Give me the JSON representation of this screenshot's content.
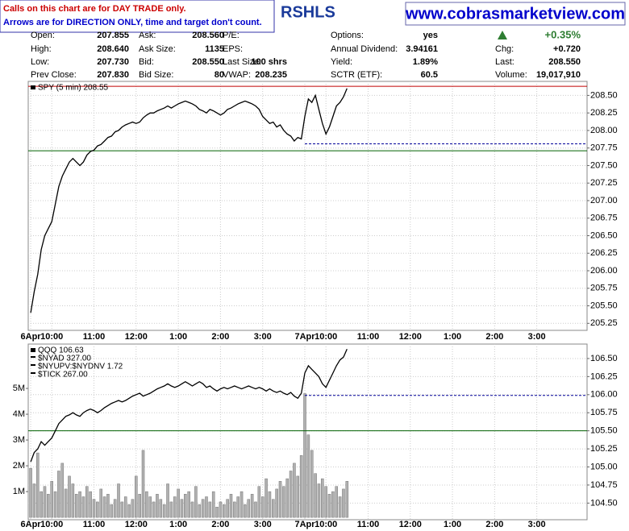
{
  "header": {
    "notice": [
      "Calls on this chart are for DAY TRADE only.",
      "Arrows are for DIRECTION ONLY, time and target don't count."
    ],
    "symbol_title": "RSHLS",
    "site": "www.cobrasmarketview.com"
  },
  "quote": {
    "columns": [
      [
        {
          "label": "Open:",
          "value": "207.855"
        },
        {
          "label": "High:",
          "value": "208.640"
        },
        {
          "label": "Low:",
          "value": "207.730"
        },
        {
          "label": "Prev Close:",
          "value": "207.830"
        }
      ],
      [
        {
          "label": "Ask:",
          "value": "208.560"
        },
        {
          "label": "Ask Size:",
          "value": "1135"
        },
        {
          "label": "Bid:",
          "value": "208.550"
        },
        {
          "label": "Bid Size:",
          "value": "80"
        }
      ],
      [
        {
          "label": "P/E:"
        },
        {
          "label": "EPS:"
        },
        {
          "label": "Last Size:",
          "value": "100 shrs"
        },
        {
          "label": "VWAP:",
          "value": "208.235"
        }
      ],
      [
        {
          "label": "Options:",
          "value": "yes"
        },
        {
          "label": "Annual Dividend:",
          "value": "3.94161"
        },
        {
          "label": "Yield:",
          "value": "1.89%"
        },
        {
          "label": "SCTR (ETF):",
          "value": "60.5"
        }
      ],
      [
        {
          "value": "+0.35%"
        },
        {
          "label": "Chg:",
          "value": "+0.720"
        },
        {
          "label": "Last:",
          "value": "208.550"
        },
        {
          "label": "Volume:",
          "value": "19,017,910"
        }
      ]
    ]
  },
  "chart_data": [
    {
      "type": "line",
      "x": [
        0,
        1,
        2,
        3,
        4,
        5,
        6,
        7,
        8,
        9,
        10,
        11,
        12,
        13,
        14,
        15,
        16,
        17,
        18,
        19,
        20,
        21,
        22,
        23,
        24,
        25,
        26,
        27,
        28,
        29,
        30,
        31,
        32,
        33,
        34,
        35,
        36,
        37,
        38,
        39,
        40,
        41,
        42,
        43,
        44,
        45,
        46,
        47,
        48,
        49,
        50,
        51,
        52,
        53,
        54,
        55,
        56,
        57,
        58,
        59,
        60,
        61,
        62,
        63,
        64,
        65,
        66,
        67,
        68,
        69,
        70,
        71,
        72,
        73,
        74,
        75,
        76,
        77,
        78,
        79,
        80,
        81,
        82,
        83,
        84,
        85,
        86,
        87,
        88,
        89,
        90
      ],
      "series": [
        {
          "name": "SPY (5 min) 208.55",
          "color": "#000000",
          "values": [
            205.4,
            205.7,
            205.95,
            206.3,
            206.5,
            206.6,
            206.7,
            206.95,
            207.2,
            207.35,
            207.45,
            207.55,
            207.6,
            207.55,
            207.5,
            207.55,
            207.65,
            207.7,
            207.72,
            207.78,
            207.8,
            207.85,
            207.9,
            207.92,
            207.98,
            208.0,
            208.05,
            208.08,
            208.1,
            208.12,
            208.1,
            208.12,
            208.18,
            208.22,
            208.25,
            208.25,
            208.28,
            208.3,
            208.32,
            208.35,
            208.32,
            208.35,
            208.38,
            208.4,
            208.42,
            208.4,
            208.38,
            208.35,
            208.3,
            208.28,
            208.25,
            208.3,
            208.28,
            208.25,
            208.22,
            208.25,
            208.3,
            208.32,
            208.35,
            208.38,
            208.4,
            208.42,
            208.4,
            208.38,
            208.35,
            208.3,
            208.2,
            208.15,
            208.1,
            208.12,
            208.05,
            208.08,
            208.0,
            207.95,
            207.92,
            207.85,
            207.9,
            207.88,
            208.2,
            208.45,
            208.4,
            208.5,
            208.3,
            208.1,
            207.95,
            208.05,
            208.2,
            208.35,
            208.4,
            208.48,
            208.6
          ]
        }
      ],
      "xlim": [
        -0.7,
        158.3
      ],
      "xticks": [
        {
          "value": 0,
          "label": "6Apr"
        },
        {
          "value": 6,
          "label": "10:00"
        },
        {
          "value": 18,
          "label": "11:00"
        },
        {
          "value": 30,
          "label": "12:00"
        },
        {
          "value": 42,
          "label": "1:00"
        },
        {
          "value": 54,
          "label": "2:00"
        },
        {
          "value": 66,
          "label": "3:00"
        },
        {
          "value": 78,
          "label": "7Apr"
        },
        {
          "value": 84,
          "label": "10:00"
        },
        {
          "value": 96,
          "label": "11:00"
        },
        {
          "value": 108,
          "label": "12:00"
        },
        {
          "value": 120,
          "label": "1:00"
        },
        {
          "value": 132,
          "label": "2:00"
        },
        {
          "value": 144,
          "label": "3:00"
        }
      ],
      "ylim": [
        205.15,
        208.7
      ],
      "yticks": [
        {
          "value": 205.25,
          "label": "205.25"
        },
        {
          "value": 205.5,
          "label": "205.50"
        },
        {
          "value": 205.75,
          "label": "205.75"
        },
        {
          "value": 206,
          "label": "206.00"
        },
        {
          "value": 206.25,
          "label": "206.25"
        },
        {
          "value": 206.5,
          "label": "206.50"
        },
        {
          "value": 206.75,
          "label": "206.75"
        },
        {
          "value": 207,
          "label": "207.00"
        },
        {
          "value": 207.25,
          "label": "207.25"
        },
        {
          "value": 207.5,
          "label": "207.50"
        },
        {
          "value": 207.75,
          "label": "207.75"
        },
        {
          "value": 208,
          "label": "208.00"
        },
        {
          "value": 208.25,
          "label": "208.25"
        },
        {
          "value": 208.5,
          "label": "208.50"
        }
      ],
      "reference_lines": [
        {
          "value": 208.63,
          "color": "#c00000"
        },
        {
          "value": 207.71,
          "color": "#006000"
        },
        {
          "value": 207.81,
          "color": "#000099",
          "dashed": true,
          "x_start": 78
        }
      ],
      "grid": true
    },
    {
      "type": "line",
      "x": [
        0,
        1,
        2,
        3,
        4,
        5,
        6,
        7,
        8,
        9,
        10,
        11,
        12,
        13,
        14,
        15,
        16,
        17,
        18,
        19,
        20,
        21,
        22,
        23,
        24,
        25,
        26,
        27,
        28,
        29,
        30,
        31,
        32,
        33,
        34,
        35,
        36,
        37,
        38,
        39,
        40,
        41,
        42,
        43,
        44,
        45,
        46,
        47,
        48,
        49,
        50,
        51,
        52,
        53,
        54,
        55,
        56,
        57,
        58,
        59,
        60,
        61,
        62,
        63,
        64,
        65,
        66,
        67,
        68,
        69,
        70,
        71,
        72,
        73,
        74,
        75,
        76,
        77,
        78,
        79,
        80,
        81,
        82,
        83,
        84,
        85,
        86,
        87,
        88,
        89,
        90
      ],
      "series": [
        {
          "name": "QQQ 106.63",
          "color": "#000000",
          "values": [
            105.07,
            105.2,
            105.25,
            105.35,
            105.3,
            105.35,
            105.4,
            105.5,
            105.6,
            105.65,
            105.7,
            105.72,
            105.75,
            105.72,
            105.7,
            105.75,
            105.78,
            105.8,
            105.78,
            105.75,
            105.78,
            105.82,
            105.85,
            105.88,
            105.9,
            105.92,
            105.9,
            105.92,
            105.95,
            105.98,
            106.0,
            106.02,
            105.98,
            106.0,
            106.02,
            106.05,
            106.08,
            106.1,
            106.12,
            106.15,
            106.12,
            106.1,
            106.12,
            106.15,
            106.18,
            106.15,
            106.12,
            106.15,
            106.18,
            106.15,
            106.1,
            106.12,
            106.08,
            106.05,
            106.08,
            106.1,
            106.08,
            106.1,
            106.12,
            106.1,
            106.08,
            106.1,
            106.12,
            106.1,
            106.08,
            106.1,
            106.08,
            106.05,
            106.08,
            106.05,
            106.03,
            106.05,
            106.02,
            106.0,
            106.03,
            105.98,
            105.95,
            106.02,
            106.3,
            106.4,
            106.35,
            106.3,
            106.25,
            106.15,
            106.1,
            106.2,
            106.3,
            106.4,
            106.48,
            106.52,
            106.63
          ]
        }
      ],
      "legend_notes": [
        "$NYAD 327.00",
        "$NYUPV:$NYDNV 1.72",
        "$TICK 267.00"
      ],
      "volume": {
        "color": "#b0b0b0",
        "axis": "y2",
        "values": [
          1900000,
          1300000,
          2500000,
          1000000,
          1200000,
          900000,
          1400000,
          1000000,
          1800000,
          2100000,
          1100000,
          1600000,
          1300000,
          900000,
          1000000,
          800000,
          1200000,
          1000000,
          700000,
          600000,
          1100000,
          800000,
          900000,
          500000,
          700000,
          1300000,
          600000,
          800000,
          500000,
          700000,
          1600000,
          900000,
          2600000,
          1000000,
          800000,
          600000,
          900000,
          700000,
          500000,
          1300000,
          600000,
          800000,
          1100000,
          700000,
          900000,
          1000000,
          600000,
          1200000,
          500000,
          700000,
          800000,
          600000,
          1000000,
          400000,
          600000,
          500000,
          700000,
          900000,
          600000,
          800000,
          1000000,
          500000,
          700000,
          900000,
          600000,
          1200000,
          800000,
          1500000,
          1000000,
          700000,
          1100000,
          1400000,
          1200000,
          1500000,
          1800000,
          2100000,
          1600000,
          2400000,
          4800000,
          3200000,
          2600000,
          1700000,
          1300000,
          1500000,
          1200000,
          900000,
          1000000,
          1200000,
          800000,
          1100000,
          1400000
        ]
      },
      "xlim": [
        -0.7,
        158.3
      ],
      "xticks": [
        {
          "value": 0,
          "label": "6Apr"
        },
        {
          "value": 6,
          "label": "10:00"
        },
        {
          "value": 18,
          "label": "11:00"
        },
        {
          "value": 30,
          "label": "12:00"
        },
        {
          "value": 42,
          "label": "1:00"
        },
        {
          "value": 54,
          "label": "2:00"
        },
        {
          "value": 66,
          "label": "3:00"
        },
        {
          "value": 78,
          "label": "7Apr"
        },
        {
          "value": 84,
          "label": "10:00"
        },
        {
          "value": 96,
          "label": "11:00"
        },
        {
          "value": 108,
          "label": "12:00"
        },
        {
          "value": 120,
          "label": "1:00"
        },
        {
          "value": 132,
          "label": "2:00"
        },
        {
          "value": 144,
          "label": "3:00"
        }
      ],
      "ylim": [
        104.27,
        106.7
      ],
      "yticks": [
        {
          "value": 104.5,
          "label": "104.50"
        },
        {
          "value": 104.75,
          "label": "104.75"
        },
        {
          "value": 105,
          "label": "105.00"
        },
        {
          "value": 105.25,
          "label": "105.25"
        },
        {
          "value": 105.5,
          "label": "105.50"
        },
        {
          "value": 105.75,
          "label": "105.75"
        },
        {
          "value": 106,
          "label": "106.00"
        },
        {
          "value": 106.25,
          "label": "106.25"
        },
        {
          "value": 106.5,
          "label": "106.50"
        }
      ],
      "y2lim": [
        -90000,
        6720000
      ],
      "y2ticks": [
        {
          "value": 1000000,
          "label": "1M"
        },
        {
          "value": 2000000,
          "label": "2M"
        },
        {
          "value": 3000000,
          "label": "3M"
        },
        {
          "value": 4000000,
          "label": "4M"
        },
        {
          "value": 5000000,
          "label": "5M"
        }
      ],
      "reference_lines": [
        {
          "value": 105.5,
          "color": "#006000"
        },
        {
          "value": 105.99,
          "color": "#000099",
          "dashed": true,
          "x_start": 78
        }
      ],
      "grid": true
    }
  ]
}
